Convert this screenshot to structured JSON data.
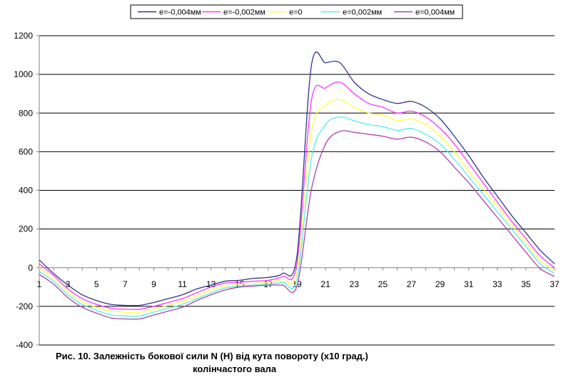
{
  "chart_data": {
    "type": "line",
    "title": "",
    "caption_line1": "Рис. 10. Залежність бокової сили N (Н) від кута повороту (х10 град.)",
    "caption_line2": "колінчастого вала",
    "xlabel": "",
    "ylabel": "",
    "xlim": [
      1,
      37
    ],
    "ylim": [
      -400,
      1200
    ],
    "y_ticks": [
      -400,
      -200,
      0,
      200,
      400,
      600,
      800,
      1000,
      1200
    ],
    "x_ticks": [
      1,
      3,
      5,
      7,
      9,
      11,
      13,
      15,
      17,
      19,
      21,
      23,
      25,
      27,
      29,
      31,
      33,
      35,
      37
    ],
    "grid": "horizontal",
    "legend_position": "top",
    "x": [
      1,
      2,
      3,
      4,
      5,
      6,
      7,
      8,
      9,
      10,
      11,
      12,
      13,
      14,
      15,
      16,
      17,
      18,
      19,
      20,
      21,
      22,
      23,
      24,
      25,
      26,
      27,
      28,
      29,
      30,
      31,
      32,
      33,
      34,
      35,
      36,
      37
    ],
    "series": [
      {
        "name": "е=-0,004мм",
        "color": "#33338c",
        "values": [
          40,
          -30,
          -90,
          -140,
          -170,
          -190,
          -195,
          -195,
          -180,
          -160,
          -140,
          -110,
          -90,
          -70,
          -65,
          -55,
          -50,
          -30,
          60,
          1040,
          1060,
          1060,
          960,
          900,
          870,
          850,
          860,
          830,
          770,
          680,
          580,
          470,
          370,
          270,
          180,
          90,
          20
        ]
      },
      {
        "name": "е=-0,002мм",
        "color": "#ff33ff",
        "values": [
          20,
          -40,
          -110,
          -160,
          -190,
          -210,
          -215,
          -215,
          -200,
          -180,
          -160,
          -130,
          -100,
          -80,
          -75,
          -70,
          -65,
          -45,
          20,
          860,
          930,
          960,
          900,
          850,
          830,
          800,
          810,
          780,
          720,
          640,
          540,
          440,
          340,
          240,
          150,
          60,
          0
        ]
      },
      {
        "name": "е=0",
        "color": "#ffff44",
        "values": [
          0,
          -55,
          -125,
          -175,
          -205,
          -225,
          -230,
          -230,
          -215,
          -195,
          -175,
          -145,
          -115,
          -95,
          -85,
          -80,
          -75,
          -60,
          -20,
          700,
          840,
          870,
          830,
          800,
          790,
          760,
          770,
          740,
          680,
          600,
          500,
          410,
          320,
          220,
          130,
          40,
          -15
        ]
      },
      {
        "name": "е=0,002мм",
        "color": "#55eeee",
        "values": [
          -20,
          -70,
          -140,
          -190,
          -220,
          -245,
          -250,
          -250,
          -230,
          -210,
          -190,
          -160,
          -130,
          -105,
          -95,
          -90,
          -85,
          -75,
          -60,
          560,
          740,
          780,
          760,
          740,
          730,
          710,
          720,
          690,
          640,
          560,
          470,
          380,
          290,
          200,
          110,
          20,
          -30
        ]
      },
      {
        "name": "е=0,004мм",
        "color": "#aa44aa",
        "values": [
          -35,
          -85,
          -155,
          -205,
          -235,
          -260,
          -265,
          -265,
          -245,
          -225,
          -205,
          -170,
          -140,
          -115,
          -100,
          -95,
          -90,
          -90,
          -95,
          400,
          640,
          705,
          700,
          690,
          680,
          665,
          675,
          650,
          600,
          520,
          440,
          350,
          260,
          170,
          80,
          -5,
          -45
        ]
      }
    ]
  }
}
